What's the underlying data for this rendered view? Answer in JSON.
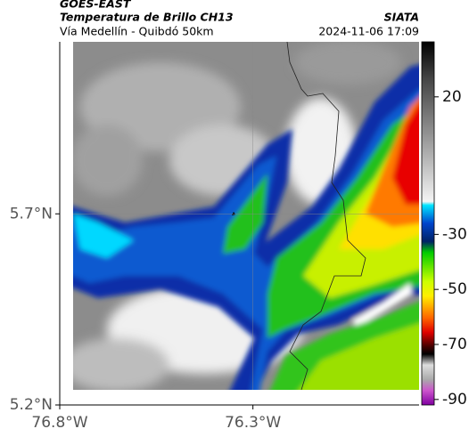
{
  "header": {
    "source": "GOES-EAST",
    "title": "Temperatura de Brillo CH13",
    "subtitle": "Vía Medellín - Quibdó 50km",
    "agency": "SIATA",
    "datetime": "2024-11-06 17:09"
  },
  "map": {
    "lonlim": [
      -76.8,
      -75.87
    ],
    "latlim": [
      5.2,
      6.15
    ],
    "xticks": [
      {
        "value": -76.8,
        "label": "76.8°W"
      },
      {
        "value": -76.3,
        "label": "76.3°W"
      }
    ],
    "yticks": [
      {
        "value": 5.7,
        "label": "5.7°N"
      },
      {
        "value": 5.2,
        "label": "5.2°N"
      }
    ],
    "grid": true
  },
  "colorbar": {
    "lim": [
      -92,
      40
    ],
    "ticks": [
      20,
      -30,
      -50,
      -70,
      -90
    ]
  }
}
